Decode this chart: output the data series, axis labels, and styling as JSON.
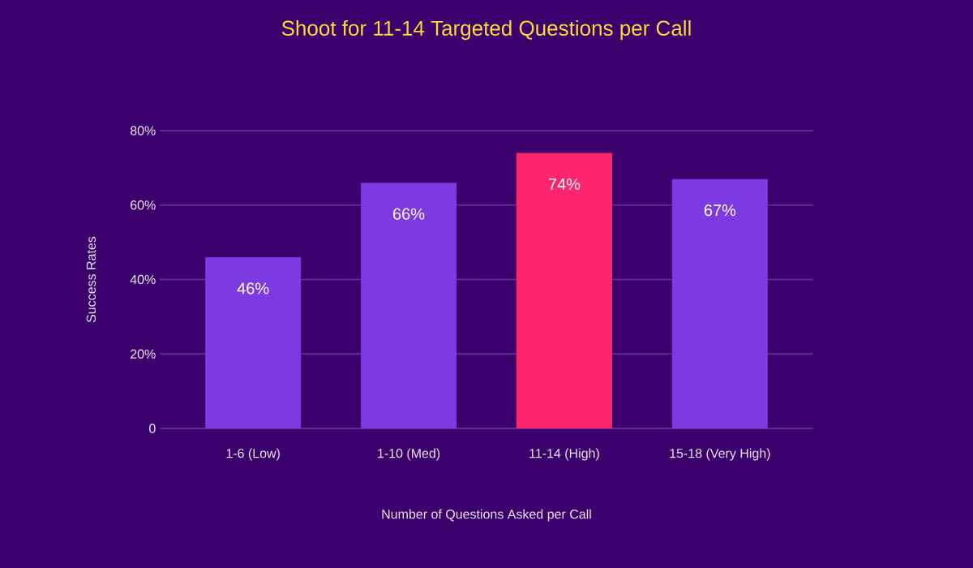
{
  "chart_data": {
    "type": "bar",
    "title": "Shoot for 11-14 Targeted Questions per Call",
    "xlabel": "Number of Questions Asked per Call",
    "ylabel": "Success Rates",
    "categories": [
      "1-6 (Low)",
      "1-10 (Med)",
      "11-14 (High)",
      "15-18 (Very High)"
    ],
    "values": [
      46,
      66,
      74,
      67
    ],
    "colors": [
      "#7c3ae0",
      "#7c3ae0",
      "#ff2470",
      "#7c3ae0"
    ],
    "value_labels": [
      "46%",
      "66%",
      "74%",
      "67%"
    ],
    "ylim": [
      0,
      80
    ],
    "yticks": [
      0,
      {
        "value": 20,
        "label": "20%"
      },
      {
        "value": 40,
        "label": "40%"
      },
      {
        "value": 60,
        "label": "60%"
      },
      {
        "value": 80,
        "label": "80%"
      }
    ],
    "grid": "y"
  }
}
